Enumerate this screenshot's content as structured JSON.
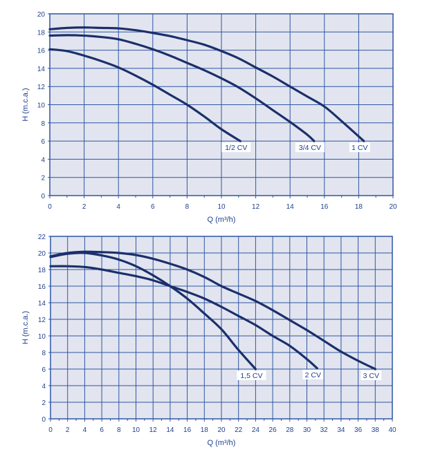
{
  "colors": {
    "plot_bg": "#e2e5ef",
    "grid": "#2f54a3",
    "curve": "#1b2f6b",
    "text": "#1e3f8c"
  },
  "chart_data": [
    {
      "type": "line",
      "title": "",
      "xlabel": "Q (m³/h)",
      "ylabel": "H (m.c.a.)",
      "xlim": [
        0,
        20
      ],
      "ylim": [
        0,
        20
      ],
      "xticks": [
        0,
        2,
        4,
        6,
        8,
        10,
        12,
        14,
        16,
        18,
        20
      ],
      "yticks": [
        0,
        2,
        4,
        6,
        8,
        10,
        12,
        14,
        16,
        18,
        20
      ],
      "grid": true,
      "series": [
        {
          "name": "1/2 CV",
          "x": [
            0,
            1,
            2,
            3,
            4,
            5,
            6,
            7,
            8,
            9,
            10,
            11.1
          ],
          "y": [
            16.1,
            15.9,
            15.4,
            14.8,
            14.1,
            13.2,
            12.2,
            11.1,
            10,
            8.7,
            7.3,
            6
          ]
        },
        {
          "name": "3/4 CV",
          "x": [
            0,
            1,
            2,
            3,
            4,
            5,
            6,
            7,
            8,
            9,
            10,
            11,
            12,
            13,
            14,
            15,
            15.4
          ],
          "y": [
            17.6,
            17.65,
            17.6,
            17.45,
            17.2,
            16.7,
            16.1,
            15.4,
            14.6,
            13.8,
            12.9,
            11.9,
            10.7,
            9.4,
            8.1,
            6.7,
            6
          ]
        },
        {
          "name": "1 CV",
          "x": [
            0,
            1,
            2,
            3,
            4,
            5,
            6,
            7,
            8,
            9,
            10,
            11,
            12,
            13,
            14,
            15,
            16,
            17,
            18.3
          ],
          "y": [
            18.3,
            18.45,
            18.5,
            18.45,
            18.4,
            18.2,
            17.9,
            17.55,
            17.1,
            16.6,
            15.9,
            15.1,
            14.1,
            13.1,
            12,
            10.9,
            9.8,
            8.2,
            6
          ]
        }
      ]
    },
    {
      "type": "line",
      "title": "",
      "xlabel": "Q (m³/h)",
      "ylabel": "H (m.c.a.)",
      "xlim": [
        0,
        40
      ],
      "ylim": [
        0,
        22
      ],
      "xticks": [
        0,
        2,
        4,
        6,
        8,
        10,
        12,
        14,
        16,
        18,
        20,
        22,
        24,
        26,
        28,
        30,
        32,
        34,
        36,
        38,
        40
      ],
      "yticks": [
        0,
        2,
        4,
        6,
        8,
        10,
        12,
        14,
        16,
        18,
        20,
        22
      ],
      "grid": true,
      "series": [
        {
          "name": "1,5 CV",
          "x": [
            0,
            2,
            4,
            6,
            8,
            10,
            12,
            14,
            16,
            18,
            20,
            22,
            24
          ],
          "y": [
            19.5,
            19.9,
            20,
            19.7,
            19.2,
            18.4,
            17.3,
            16,
            14.5,
            12.7,
            10.8,
            8.3,
            6
          ]
        },
        {
          "name": "2 CV",
          "x": [
            0,
            2,
            4,
            6,
            8,
            10,
            12,
            14,
            16,
            18,
            20,
            22,
            24,
            26,
            28,
            30,
            31.2
          ],
          "y": [
            18.4,
            18.4,
            18.3,
            18,
            17.6,
            17.2,
            16.7,
            16,
            15.3,
            14.5,
            13.5,
            12.4,
            11.3,
            10,
            8.8,
            7.2,
            6.1
          ]
        },
        {
          "name": "3 CV",
          "x": [
            0,
            2,
            4,
            6,
            8,
            10,
            12,
            14,
            16,
            18,
            20,
            22,
            24,
            26,
            28,
            30,
            32,
            34,
            36,
            38
          ],
          "y": [
            19.6,
            20,
            20.15,
            20.1,
            20,
            19.75,
            19.3,
            18.7,
            18,
            17.1,
            16,
            15.1,
            14.2,
            13.1,
            11.9,
            10.7,
            9.4,
            8.1,
            7,
            6
          ]
        }
      ]
    }
  ]
}
